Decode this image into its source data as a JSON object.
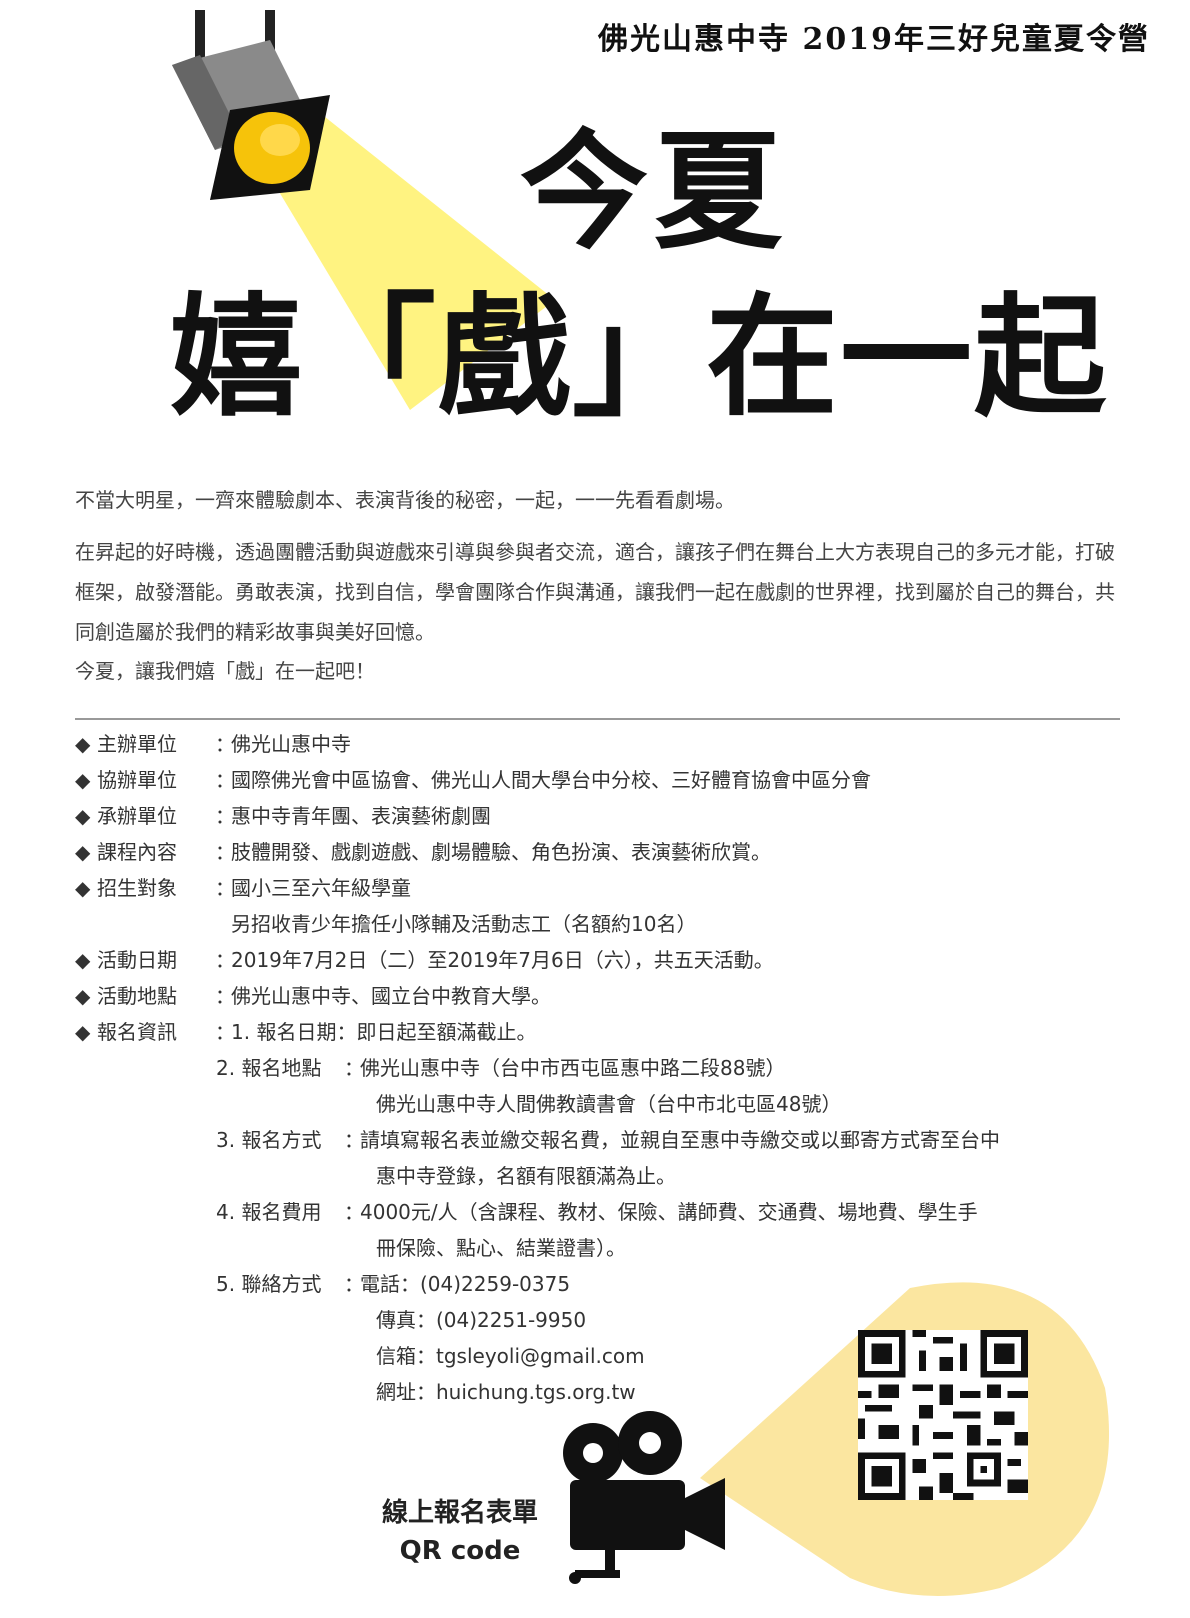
{
  "header": {
    "subtitle": "佛光山惠中寺 2019年三好兒童夏令營"
  },
  "title": {
    "line1": "今夏",
    "line2": "嬉「戲」在一起"
  },
  "intro": {
    "p1": "不當大明星，一齊來體驗劇本、表演背後的秘密，一起，一一先看看劇場。",
    "p2": "在昇起的好時機，透過團體活動與遊戲來引導與參與者交流，適合，讓孩子們在舞台上大方表現自己的多元才能，打破框架，啟發潛能。勇敢表演，找到自信，學會團隊合作與溝通，讓我們一起在戲劇的世界裡，找到屬於自己的舞台，共同創造屬於我們的精彩故事與美好回憶。",
    "p3": "今夏，讓我們嬉「戲」在一起吧！"
  },
  "details": [
    {
      "label": "主辦單位",
      "value": "佛光山惠中寺"
    },
    {
      "label": "協辦單位",
      "value": "國際佛光會中區協會、佛光山人間大學台中分校、三好體育協會中區分會"
    },
    {
      "label": "承辦單位",
      "value": "惠中寺青年團、表演藝術劇團"
    },
    {
      "label": "課程內容",
      "value": "肢體開發、戲劇遊戲、劇場體驗、角色扮演、表演藝術欣賞。",
      "cont": ""
    },
    {
      "label": "招生對象",
      "value": "國小三至六年級學童",
      "cont": "另招收青少年擔任小隊輔及活動志工（名額約10名）"
    },
    {
      "label": "活動日期",
      "value": "2019年7月2日（二）至2019年7月6日（六），共五天活動。"
    },
    {
      "label": "活動地點",
      "value": "佛光山惠中寺、國立台中教育大學。"
    },
    {
      "label": "報名資訊",
      "value": "1. 報名日期：即日起至額滿截止。"
    }
  ],
  "registration": [
    {
      "label": "2. 報名地點",
      "lines": [
        "佛光山惠中寺（台中市西屯區惠中路二段88號）",
        "佛光山惠中寺人間佛教讀書會（台中市北屯區48號）"
      ]
    },
    {
      "label": "3. 報名方式",
      "lines": [
        "請填寫報名表並繳交報名費，並親自至惠中寺繳交或以郵寄方式寄至台中",
        "惠中寺登錄，名額有限額滿為止。"
      ]
    },
    {
      "label": "4. 報名費用",
      "lines": [
        "4000元/人（含課程、教材、保險、講師費、交通費、場地費、學生手",
        "冊保險、點心、結業證書）。"
      ]
    },
    {
      "label": "5. 聯絡方式",
      "lines": [
        "電話：(04)2259-0375",
        "傳真：(04)2251-9950",
        "信箱：tgsleyoli@gmail.com",
        "網址：huichung.tgs.org.tw"
      ]
    }
  ],
  "qr": {
    "caption_line1": "線上報名表單",
    "caption_line2": "QR code"
  },
  "colors": {
    "beam": "#ffee55",
    "lens": "#f6c30a",
    "glow": "#fbe6a0",
    "dark": "#111111"
  }
}
